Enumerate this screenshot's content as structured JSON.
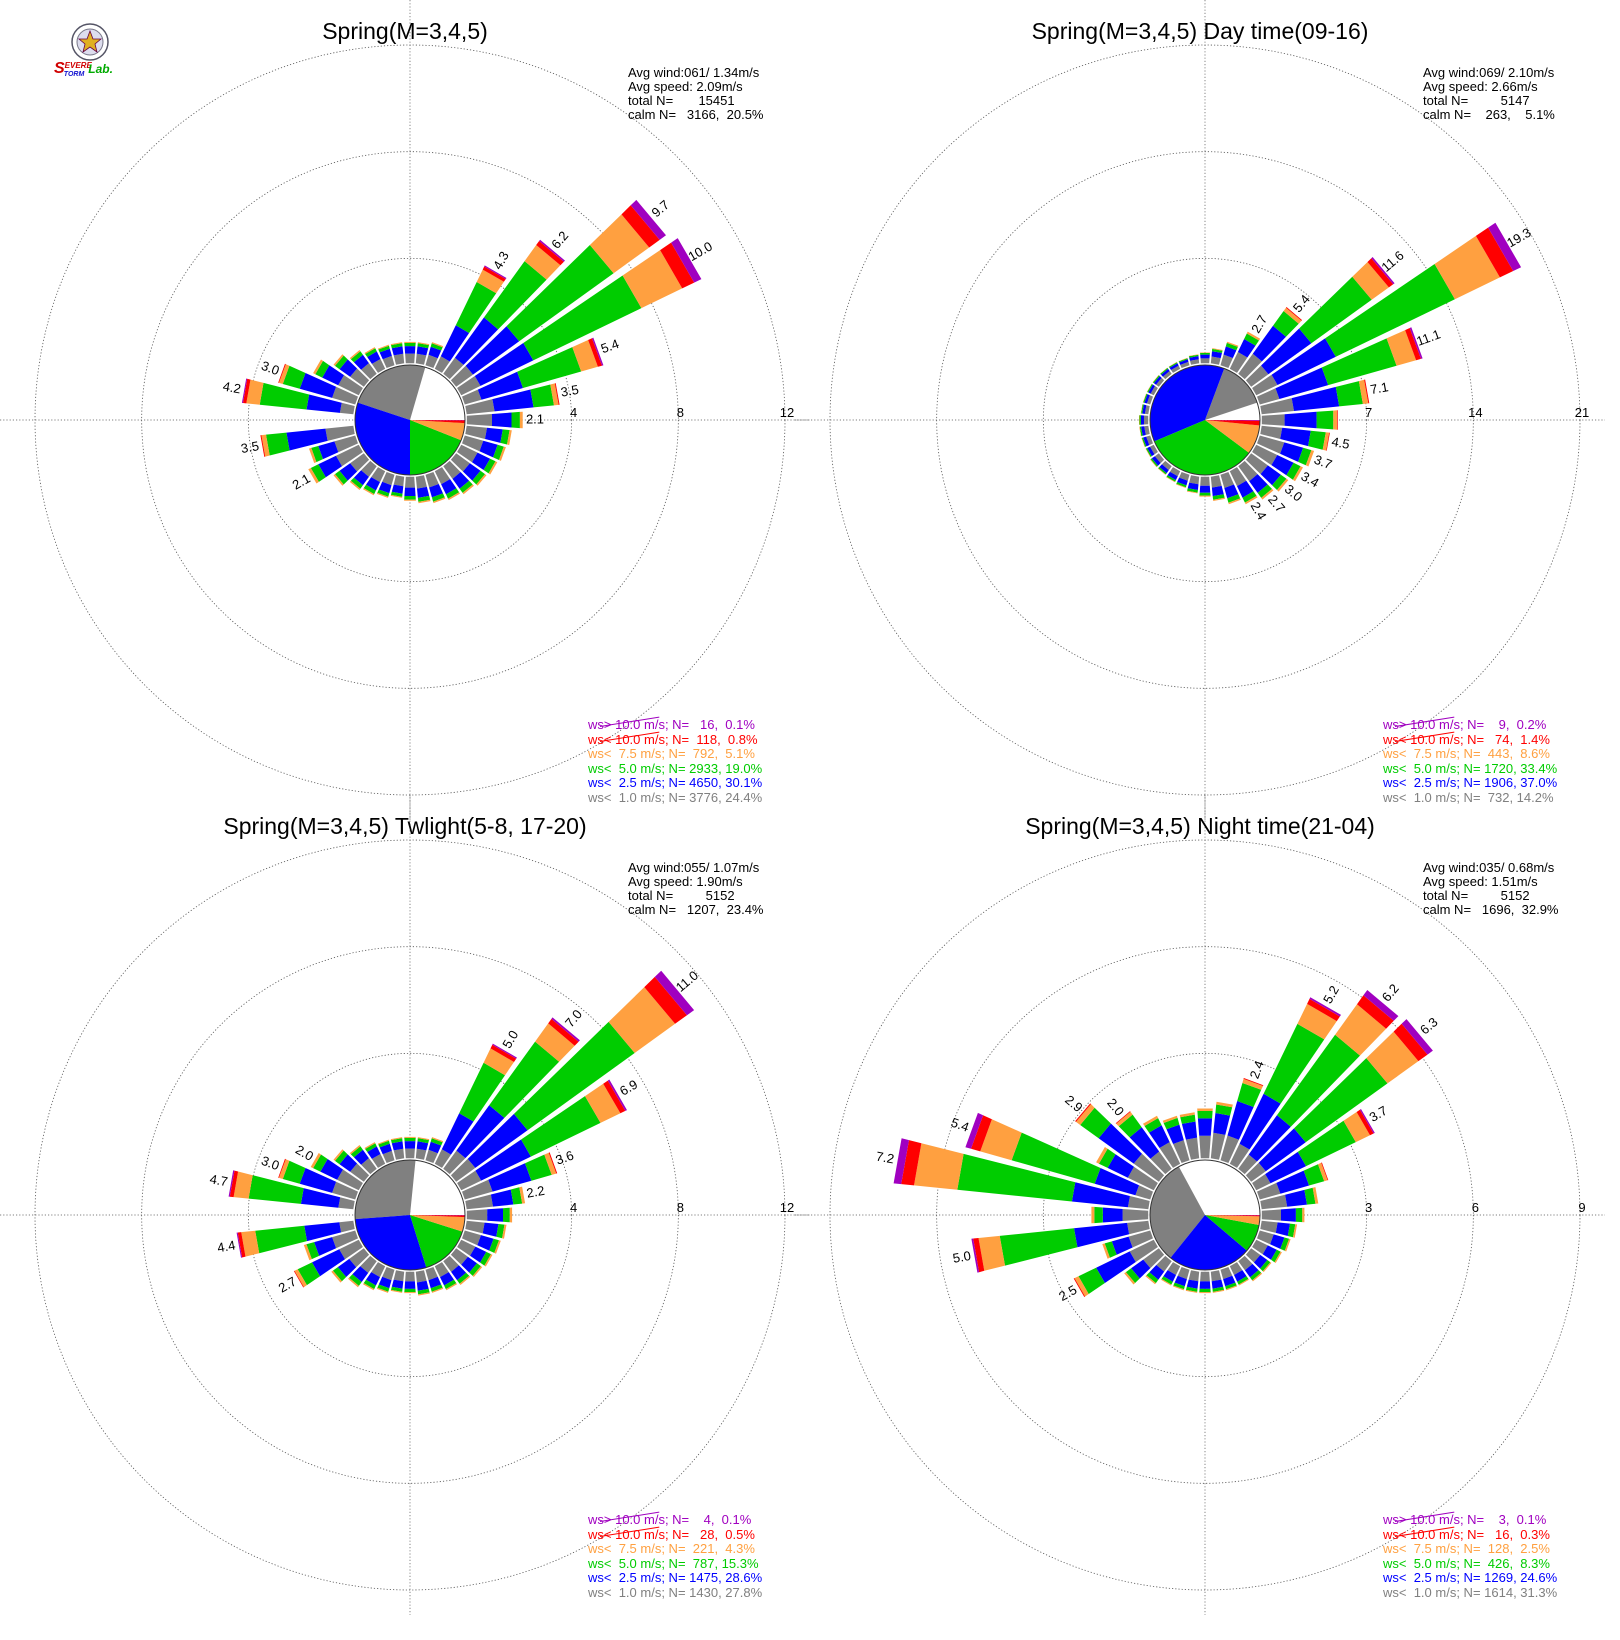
{
  "logo": {
    "text_s": "S",
    "text_evere": "EVERE",
    "text_torm": "TORM",
    "text_lab": "Lab.",
    "colors": {
      "s": "#d00000",
      "blue": "#1010d0",
      "lab": "#00aa00"
    }
  },
  "bins": {
    "labels": [
      "ws> 10.0 m/s; N=",
      "ws< 10.0 m/s; N=",
      "ws<  7.5 m/s; N=",
      "ws<  5.0 m/s; N=",
      "ws<  2.5 m/s; N=",
      "ws<  1.0 m/s; N="
    ],
    "colors": [
      "#a000c0",
      "#ff0000",
      "#ffa040",
      "#00cc00",
      "#0000ff",
      "#808080"
    ]
  },
  "chart_data": [
    {
      "type": "wind-rose",
      "title": "Spring(M=3,4,5)",
      "stats": {
        "avg_wind": "Avg wind:061/ 1.34m/s",
        "avg_speed": "Avg speed: 2.09m/s",
        "total": "total N=       15451",
        "calm": "calm N=   3166,  20.5%"
      },
      "legend": [
        {
          "n": "16",
          "pct": "0.1%"
        },
        {
          "n": "118",
          "pct": "0.8%"
        },
        {
          "n": "792",
          "pct": "5.1%"
        },
        {
          "n": "2933",
          "pct": "19.0%"
        },
        {
          "n": "4650",
          "pct": "30.1%"
        },
        {
          "n": "3776",
          "pct": "24.4%"
        }
      ],
      "rings": [
        4,
        8,
        12
      ],
      "ring_labels": [
        "4",
        "8",
        "12"
      ],
      "rmax": 12,
      "pie": [
        20.5,
        24.4,
        30.1,
        19.0,
        5.1,
        0.8,
        0.1
      ],
      "directions": [
        {
          "deg": 30,
          "value": 4.3,
          "label": "4.3"
        },
        {
          "deg": 40,
          "value": 6.2,
          "label": "6.2"
        },
        {
          "deg": 50,
          "value": 9.7,
          "label": "9.7"
        },
        {
          "deg": 60,
          "value": 10.0,
          "label": "10.0"
        },
        {
          "deg": 70,
          "value": 5.4,
          "label": "5.4"
        },
        {
          "deg": 80,
          "value": 3.5,
          "label": "3.5"
        },
        {
          "deg": 90,
          "value": 2.1,
          "label": "2.1"
        },
        {
          "deg": 100,
          "value": 1.7
        },
        {
          "deg": 110,
          "value": 1.6
        },
        {
          "deg": 120,
          "value": 1.5
        },
        {
          "deg": 130,
          "value": 1.4
        },
        {
          "deg": 140,
          "value": 1.3
        },
        {
          "deg": 150,
          "value": 1.2
        },
        {
          "deg": 160,
          "value": 1.1
        },
        {
          "deg": 170,
          "value": 1.0
        },
        {
          "deg": 180,
          "value": 0.9
        },
        {
          "deg": 190,
          "value": 0.8
        },
        {
          "deg": 200,
          "value": 0.9
        },
        {
          "deg": 210,
          "value": 1.0
        },
        {
          "deg": 220,
          "value": 1.1
        },
        {
          "deg": 230,
          "value": 1.4
        },
        {
          "deg": 240,
          "value": 2.1,
          "label": "2.1"
        },
        {
          "deg": 250,
          "value": 1.8
        },
        {
          "deg": 260,
          "value": 3.5,
          "label": "3.5"
        },
        {
          "deg": 280,
          "value": 4.2,
          "label": "4.2"
        },
        {
          "deg": 290,
          "value": 3.0,
          "label": "3.0"
        },
        {
          "deg": 300,
          "value": 1.9
        },
        {
          "deg": 310,
          "value": 1.4
        },
        {
          "deg": 320,
          "value": 1.1
        },
        {
          "deg": 330,
          "value": 0.9
        },
        {
          "deg": 340,
          "value": 0.8
        },
        {
          "deg": 350,
          "value": 0.8
        },
        {
          "deg": 0,
          "value": 0.8
        },
        {
          "deg": 10,
          "value": 0.8
        },
        {
          "deg": 20,
          "value": 0.9
        }
      ]
    },
    {
      "type": "wind-rose",
      "title": "Spring(M=3,4,5) Day time(09-16)",
      "stats": {
        "avg_wind": "Avg wind:069/ 2.10m/s",
        "avg_speed": "Avg speed: 2.66m/s",
        "total": "total N=         5147",
        "calm": "calm N=    263,    5.1%"
      },
      "legend": [
        {
          "n": "9",
          "pct": "0.2%"
        },
        {
          "n": "74",
          "pct": "1.4%"
        },
        {
          "n": "443",
          "pct": "8.6%"
        },
        {
          "n": "1720",
          "pct": "33.4%"
        },
        {
          "n": "1906",
          "pct": "37.0%"
        },
        {
          "n": "732",
          "pct": "14.2%"
        }
      ],
      "rings": [
        7,
        14,
        21
      ],
      "ring_labels": [
        "7",
        "14",
        "21"
      ],
      "rmax": 21,
      "pie": [
        5.1,
        14.2,
        37.0,
        33.4,
        8.6,
        1.4,
        0.2
      ],
      "directions": [
        {
          "deg": 30,
          "value": 2.7,
          "label": "2.7"
        },
        {
          "deg": 40,
          "value": 5.4,
          "label": "5.4"
        },
        {
          "deg": 50,
          "value": 11.6,
          "label": "11.6"
        },
        {
          "deg": 60,
          "value": 19.3,
          "label": "19.3"
        },
        {
          "deg": 70,
          "value": 11.1,
          "label": "11.1"
        },
        {
          "deg": 80,
          "value": 7.1,
          "label": "7.1"
        },
        {
          "deg": 90,
          "value": 5.0
        },
        {
          "deg": 100,
          "value": 4.5,
          "label": "4.5"
        },
        {
          "deg": 110,
          "value": 3.7,
          "label": "3.7"
        },
        {
          "deg": 120,
          "value": 3.4,
          "label": "3.4"
        },
        {
          "deg": 130,
          "value": 3.0,
          "label": "3.0"
        },
        {
          "deg": 140,
          "value": 2.7,
          "label": "2.7"
        },
        {
          "deg": 150,
          "value": 2.4,
          "label": "2.4"
        },
        {
          "deg": 160,
          "value": 2.0
        },
        {
          "deg": 170,
          "value": 1.6
        },
        {
          "deg": 180,
          "value": 1.3
        },
        {
          "deg": 190,
          "value": 1.1
        },
        {
          "deg": 200,
          "value": 0.9
        },
        {
          "deg": 210,
          "value": 0.8
        },
        {
          "deg": 220,
          "value": 0.7
        },
        {
          "deg": 230,
          "value": 0.7
        },
        {
          "deg": 240,
          "value": 0.6
        },
        {
          "deg": 250,
          "value": 0.6
        },
        {
          "deg": 260,
          "value": 0.6
        },
        {
          "deg": 270,
          "value": 0.6
        },
        {
          "deg": 280,
          "value": 0.5
        },
        {
          "deg": 290,
          "value": 0.5
        },
        {
          "deg": 300,
          "value": 0.5
        },
        {
          "deg": 310,
          "value": 0.5
        },
        {
          "deg": 320,
          "value": 0.5
        },
        {
          "deg": 330,
          "value": 0.5
        },
        {
          "deg": 340,
          "value": 0.5
        },
        {
          "deg": 350,
          "value": 0.6
        },
        {
          "deg": 0,
          "value": 0.7
        },
        {
          "deg": 10,
          "value": 1.0
        },
        {
          "deg": 20,
          "value": 1.6
        }
      ]
    },
    {
      "type": "wind-rose",
      "title": "Spring(M=3,4,5) Twlight(5-8, 17-20)",
      "stats": {
        "avg_wind": "Avg wind:055/ 1.07m/s",
        "avg_speed": "Avg speed: 1.90m/s",
        "total": "total N=         5152",
        "calm": "calm N=   1207,  23.4%"
      },
      "legend": [
        {
          "n": "4",
          "pct": "0.1%"
        },
        {
          "n": "28",
          "pct": "0.5%"
        },
        {
          "n": "221",
          "pct": "4.3%"
        },
        {
          "n": "787",
          "pct": "15.3%"
        },
        {
          "n": "1475",
          "pct": "28.6%"
        },
        {
          "n": "1430",
          "pct": "27.8%"
        }
      ],
      "rings": [
        4,
        8,
        12
      ],
      "ring_labels": [
        "4",
        "8",
        "12"
      ],
      "rmax": 12,
      "pie": [
        23.4,
        27.8,
        28.6,
        15.3,
        4.3,
        0.5,
        0.1
      ],
      "directions": [
        {
          "deg": 30,
          "value": 5.0,
          "label": "5.0"
        },
        {
          "deg": 40,
          "value": 7.0,
          "label": "7.0"
        },
        {
          "deg": 50,
          "value": 11.0,
          "label": "11.0"
        },
        {
          "deg": 60,
          "value": 6.9,
          "label": "6.9"
        },
        {
          "deg": 70,
          "value": 3.6,
          "label": "3.6"
        },
        {
          "deg": 80,
          "value": 2.2,
          "label": "2.2"
        },
        {
          "deg": 90,
          "value": 1.7
        },
        {
          "deg": 100,
          "value": 1.5
        },
        {
          "deg": 110,
          "value": 1.4
        },
        {
          "deg": 120,
          "value": 1.3
        },
        {
          "deg": 130,
          "value": 1.2
        },
        {
          "deg": 140,
          "value": 1.1
        },
        {
          "deg": 150,
          "value": 1.0
        },
        {
          "deg": 160,
          "value": 0.9
        },
        {
          "deg": 170,
          "value": 0.9
        },
        {
          "deg": 180,
          "value": 0.8
        },
        {
          "deg": 190,
          "value": 0.8
        },
        {
          "deg": 200,
          "value": 0.9
        },
        {
          "deg": 210,
          "value": 1.0
        },
        {
          "deg": 220,
          "value": 1.2
        },
        {
          "deg": 230,
          "value": 1.5
        },
        {
          "deg": 240,
          "value": 2.7,
          "label": "2.7"
        },
        {
          "deg": 250,
          "value": 2.0
        },
        {
          "deg": 260,
          "value": 4.4,
          "label": "4.4"
        },
        {
          "deg": 280,
          "value": 4.7,
          "label": "4.7"
        },
        {
          "deg": 290,
          "value": 3.0,
          "label": "3.0"
        },
        {
          "deg": 300,
          "value": 2.0,
          "label": "2.0"
        },
        {
          "deg": 310,
          "value": 1.4
        },
        {
          "deg": 320,
          "value": 1.1
        },
        {
          "deg": 330,
          "value": 0.9
        },
        {
          "deg": 340,
          "value": 0.8
        },
        {
          "deg": 350,
          "value": 0.8
        },
        {
          "deg": 0,
          "value": 0.8
        },
        {
          "deg": 10,
          "value": 0.8
        },
        {
          "deg": 20,
          "value": 0.9
        }
      ]
    },
    {
      "type": "wind-rose",
      "title": "Spring(M=3,4,5) Night time(21-04)",
      "stats": {
        "avg_wind": "Avg wind:035/ 0.68m/s",
        "avg_speed": "Avg speed: 1.51m/s",
        "total": "total N=         5152",
        "calm": "calm N=   1696,  32.9%"
      },
      "legend": [
        {
          "n": "3",
          "pct": "0.1%"
        },
        {
          "n": "16",
          "pct": "0.3%"
        },
        {
          "n": "128",
          "pct": "2.5%"
        },
        {
          "n": "426",
          "pct": "8.3%"
        },
        {
          "n": "1269",
          "pct": "24.6%"
        },
        {
          "n": "1614",
          "pct": "31.3%"
        }
      ],
      "rings": [
        3,
        6,
        9
      ],
      "ring_labels": [
        "3",
        "6",
        "9"
      ],
      "rmax": 9,
      "pie": [
        32.9,
        31.3,
        24.6,
        8.3,
        2.5,
        0.3,
        0.1
      ],
      "directions": [
        {
          "deg": 20,
          "value": 2.4,
          "label": "2.4"
        },
        {
          "deg": 30,
          "value": 5.2,
          "label": "5.2"
        },
        {
          "deg": 40,
          "value": 6.2,
          "label": "6.2"
        },
        {
          "deg": 50,
          "value": 6.3,
          "label": "6.3"
        },
        {
          "deg": 60,
          "value": 3.7,
          "label": "3.7"
        },
        {
          "deg": 70,
          "value": 2.0
        },
        {
          "deg": 80,
          "value": 1.6
        },
        {
          "deg": 90,
          "value": 1.2
        },
        {
          "deg": 100,
          "value": 1.0
        },
        {
          "deg": 110,
          "value": 0.9
        },
        {
          "deg": 120,
          "value": 0.8
        },
        {
          "deg": 130,
          "value": 0.7
        },
        {
          "deg": 140,
          "value": 0.7
        },
        {
          "deg": 150,
          "value": 0.6
        },
        {
          "deg": 160,
          "value": 0.6
        },
        {
          "deg": 170,
          "value": 0.6
        },
        {
          "deg": 180,
          "value": 0.6
        },
        {
          "deg": 190,
          "value": 0.6
        },
        {
          "deg": 200,
          "value": 0.6
        },
        {
          "deg": 210,
          "value": 0.6
        },
        {
          "deg": 220,
          "value": 0.8
        },
        {
          "deg": 230,
          "value": 1.2
        },
        {
          "deg": 240,
          "value": 2.5,
          "label": "2.5"
        },
        {
          "deg": 250,
          "value": 1.4
        },
        {
          "deg": 260,
          "value": 5.0,
          "label": "5.0"
        },
        {
          "deg": 270,
          "value": 1.6
        },
        {
          "deg": 280,
          "value": 7.2,
          "label": "7.2"
        },
        {
          "deg": 290,
          "value": 5.4,
          "label": "5.4"
        },
        {
          "deg": 300,
          "value": 1.8
        },
        {
          "deg": 310,
          "value": 2.9,
          "label": "2.9"
        },
        {
          "deg": 320,
          "value": 2.0,
          "label": "2.0"
        },
        {
          "deg": 330,
          "value": 1.5
        },
        {
          "deg": 340,
          "value": 1.3
        },
        {
          "deg": 350,
          "value": 1.3
        },
        {
          "deg": 0,
          "value": 1.4
        },
        {
          "deg": 10,
          "value": 1.6
        }
      ]
    }
  ]
}
